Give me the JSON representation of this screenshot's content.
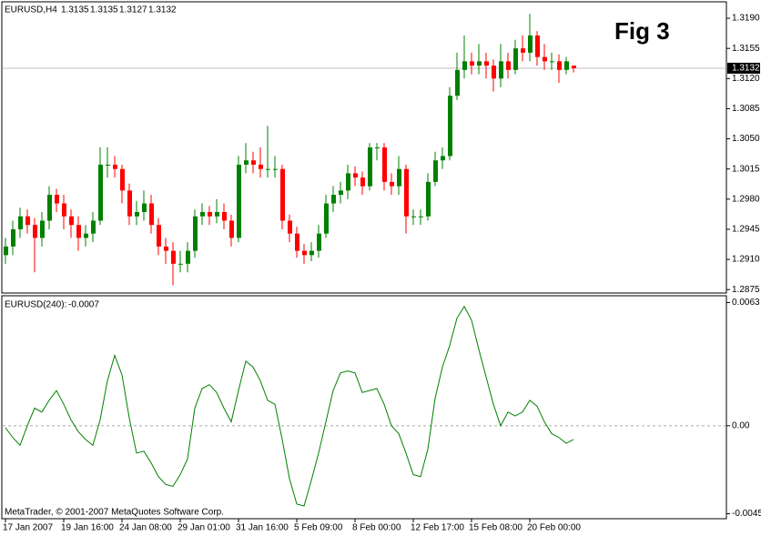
{
  "chart_data": [
    {
      "type": "candlestick",
      "title": "EURUSD,H4",
      "annotation": "Fig 3",
      "watermark": "MetaTrader, © 2001-2007 MetaQuotes Software Corp.",
      "up_color": "#008000",
      "down_color": "#ff0000",
      "current_price": 1.3132,
      "categories": [
        "17 Jan 2007",
        null,
        null,
        null,
        null,
        null,
        null,
        null,
        "19 Jan 16:00",
        null,
        null,
        null,
        null,
        null,
        null,
        null,
        "24 Jan 08:00",
        null,
        null,
        null,
        null,
        null,
        null,
        null,
        "29 Jan 01:00",
        null,
        null,
        null,
        null,
        null,
        null,
        null,
        "31 Jan 16:00",
        null,
        null,
        null,
        null,
        null,
        null,
        null,
        "5 Feb 09:00",
        null,
        null,
        null,
        null,
        null,
        null,
        null,
        "8 Feb 00:00",
        null,
        null,
        null,
        null,
        null,
        null,
        null,
        "12 Feb 17:00",
        null,
        null,
        null,
        null,
        null,
        null,
        null,
        "15 Feb 08:00",
        null,
        null,
        null,
        null,
        null,
        null,
        null,
        "20 Feb 00:00",
        null,
        null,
        null,
        null,
        null,
        null
      ],
      "open": [
        1.2915,
        1.2925,
        1.2945,
        1.296,
        1.295,
        1.2935,
        1.2955,
        1.2985,
        1.2975,
        1.296,
        1.295,
        1.2935,
        1.294,
        1.2955,
        1.302,
        1.302,
        1.3015,
        1.299,
        1.296,
        1.2965,
        1.2975,
        1.295,
        1.2925,
        1.292,
        1.2905,
        1.2905,
        1.292,
        1.296,
        1.2965,
        1.296,
        1.2965,
        1.2955,
        1.2935,
        1.302,
        1.3025,
        1.302,
        1.3015,
        1.3015,
        1.3015,
        1.2955,
        1.294,
        1.292,
        1.2915,
        1.292,
        1.294,
        1.2975,
        1.2985,
        1.299,
        1.301,
        1.3005,
        1.2995,
        1.304,
        1.304,
        1.3,
        1.2995,
        1.3015,
        1.296,
        1.296,
        1.296,
        1.3,
        1.3025,
        1.303,
        1.31,
        1.313,
        1.314,
        1.3135,
        1.314,
        1.3135,
        1.312,
        1.314,
        1.313,
        1.3155,
        1.315,
        1.317,
        1.3145,
        1.314,
        1.314,
        1.313,
        1.3135
      ],
      "high": [
        1.2935,
        1.2955,
        1.297,
        1.2968,
        1.2958,
        1.2965,
        1.2995,
        1.2992,
        1.2985,
        1.2968,
        1.296,
        1.295,
        1.2965,
        1.304,
        1.304,
        1.303,
        1.302,
        1.2998,
        1.2978,
        1.299,
        1.2985,
        1.2958,
        1.2935,
        1.293,
        1.292,
        1.293,
        1.2968,
        1.2975,
        1.2972,
        1.298,
        1.2975,
        1.2962,
        1.303,
        1.3045,
        1.3035,
        1.304,
        1.3065,
        1.303,
        1.302,
        1.2962,
        1.2948,
        1.2928,
        1.293,
        1.295,
        1.2985,
        1.2995,
        1.3,
        1.302,
        1.3018,
        1.3012,
        1.3045,
        1.3045,
        1.3045,
        1.301,
        1.303,
        1.302,
        1.2968,
        1.2968,
        1.301,
        1.3035,
        1.304,
        1.311,
        1.315,
        1.317,
        1.315,
        1.316,
        1.315,
        1.3142,
        1.316,
        1.315,
        1.3165,
        1.317,
        1.3195,
        1.3175,
        1.316,
        1.315,
        1.3148,
        1.3145,
        1.3135
      ],
      "low": [
        1.2905,
        1.2915,
        1.2935,
        1.294,
        1.2895,
        1.2925,
        1.2945,
        1.2965,
        1.2945,
        1.2935,
        1.292,
        1.2925,
        1.293,
        1.295,
        1.3005,
        1.3005,
        1.2975,
        1.295,
        1.295,
        1.2955,
        1.294,
        1.2915,
        1.2905,
        1.288,
        1.2895,
        1.2895,
        1.2912,
        1.295,
        1.295,
        1.2952,
        1.2945,
        1.2925,
        1.293,
        1.301,
        1.301,
        1.3005,
        1.3005,
        1.3005,
        1.2945,
        1.293,
        1.2912,
        1.2905,
        1.2908,
        1.2912,
        1.2935,
        1.2965,
        1.2975,
        1.298,
        1.2995,
        1.2985,
        1.299,
        1.3025,
        1.299,
        1.2985,
        1.2985,
        1.294,
        1.295,
        1.295,
        1.2955,
        1.2995,
        1.3015,
        1.3025,
        1.3095,
        1.312,
        1.3125,
        1.3125,
        1.312,
        1.3105,
        1.311,
        1.312,
        1.3125,
        1.314,
        1.314,
        1.3135,
        1.313,
        1.313,
        1.3115,
        1.3125,
        1.3127
      ],
      "close": [
        1.2925,
        1.2945,
        1.296,
        1.295,
        1.2935,
        1.2955,
        1.2985,
        1.2975,
        1.296,
        1.295,
        1.2935,
        1.294,
        1.2955,
        1.302,
        1.302,
        1.3015,
        1.299,
        1.296,
        1.2965,
        1.2975,
        1.295,
        1.2925,
        1.292,
        1.2905,
        1.2905,
        1.292,
        1.296,
        1.2965,
        1.296,
        1.2965,
        1.2955,
        1.2935,
        1.302,
        1.3025,
        1.302,
        1.3015,
        1.3015,
        1.3015,
        1.2955,
        1.294,
        1.292,
        1.2915,
        1.292,
        1.294,
        1.2975,
        1.2985,
        1.299,
        1.301,
        1.3005,
        1.2995,
        1.304,
        1.304,
        1.3,
        1.2995,
        1.3015,
        1.296,
        1.296,
        1.296,
        1.3,
        1.3025,
        1.303,
        1.31,
        1.313,
        1.314,
        1.3135,
        1.314,
        1.3135,
        1.312,
        1.314,
        1.313,
        1.3155,
        1.315,
        1.317,
        1.3145,
        1.314,
        1.314,
        1.313,
        1.314,
        1.3132
      ],
      "ylim": [
        1.2871,
        1.3208
      ],
      "yticks": [
        {
          "value": 1.319,
          "label": "1.3190"
        },
        1.3155,
        {
          "value": 1.312,
          "label": "1.3120"
        },
        1.3085,
        {
          "value": 1.305,
          "label": "1.3050"
        },
        1.3015,
        {
          "value": 1.298,
          "label": "1.2980"
        },
        1.2945,
        {
          "value": 1.291,
          "label": "1.2910"
        },
        1.2875
      ]
    },
    {
      "type": "line",
      "title": "EURUSD(240):",
      "color": "#008000",
      "values": [
        -0.0001,
        -0.0006,
        -0.001,
        0.0,
        0.0009,
        0.0007,
        0.0013,
        0.0018,
        0.0011,
        0.0003,
        -0.0003,
        -0.0007,
        -0.001,
        0.0003,
        0.0023,
        0.0036,
        0.0026,
        0.0004,
        -0.0014,
        -0.0013,
        -0.0019,
        -0.0026,
        -0.003,
        -0.0031,
        -0.0025,
        -0.0017,
        0.0009,
        0.0019,
        0.0021,
        0.0017,
        0.0009,
        0.0002,
        0.0018,
        0.0033,
        0.003,
        0.0023,
        0.0013,
        0.0011,
        -0.0007,
        -0.0027,
        -0.004,
        -0.0041,
        -0.0028,
        -0.0014,
        0.0002,
        0.0018,
        0.0027,
        0.0028,
        0.0027,
        0.0017,
        0.0018,
        0.0019,
        0.0011,
        0.0,
        -0.0004,
        -0.0014,
        -0.0025,
        -0.0026,
        -0.0012,
        0.0014,
        0.003,
        0.0041,
        0.0055,
        0.0061,
        0.0054,
        0.0039,
        0.0025,
        0.0011,
        0.0,
        0.0007,
        0.0005,
        0.0007,
        0.0013,
        0.001,
        0.0002,
        -0.0004,
        -0.0006,
        -0.0009,
        -0.0007
      ],
      "ylim": [
        -0.0048,
        0.0066
      ],
      "yticks": [
        0.0063,
        {
          "value": 0,
          "label": "0.00"
        },
        -0.0045
      ]
    }
  ]
}
